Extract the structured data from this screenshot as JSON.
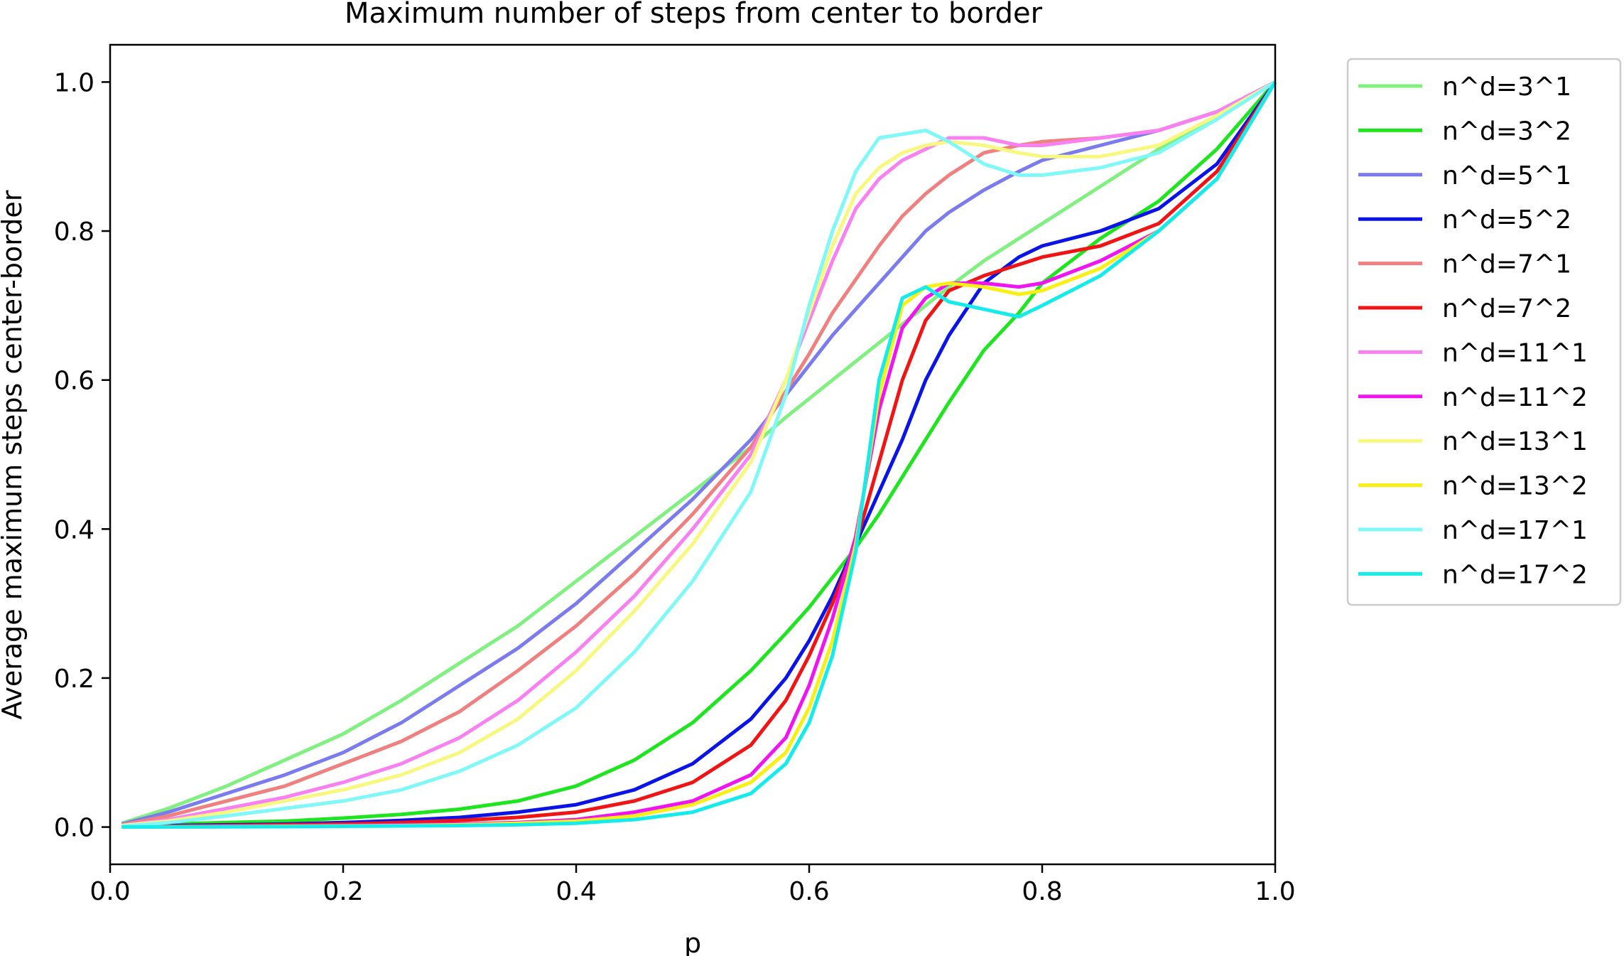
{
  "chart_data": {
    "type": "line",
    "title": "Maximum number of steps from center to border",
    "xlabel": "p",
    "ylabel": "Average maximum steps center-border",
    "xlim": [
      0.0,
      1.0
    ],
    "ylim": [
      -0.05,
      1.05
    ],
    "xticks": [
      0.0,
      0.2,
      0.4,
      0.6,
      0.8,
      1.0
    ],
    "xtick_labels": [
      "0.0",
      "0.2",
      "0.4",
      "0.6",
      "0.8",
      "1.0"
    ],
    "yticks": [
      0.0,
      0.2,
      0.4,
      0.6,
      0.8,
      1.0
    ],
    "ytick_labels": [
      "0.0",
      "0.2",
      "0.4",
      "0.6",
      "0.8",
      "1.0"
    ],
    "grid": false,
    "legend_position": "outside-right",
    "x": [
      0.01,
      0.05,
      0.1,
      0.15,
      0.2,
      0.25,
      0.3,
      0.35,
      0.4,
      0.45,
      0.5,
      0.55,
      0.58,
      0.6,
      0.62,
      0.64,
      0.66,
      0.68,
      0.7,
      0.72,
      0.75,
      0.78,
      0.8,
      0.85,
      0.9,
      0.95,
      1.0
    ],
    "series": [
      {
        "name": "n^d=3^1",
        "color": "#80f080",
        "values": [
          0.005,
          0.025,
          0.055,
          0.09,
          0.125,
          0.17,
          0.22,
          0.27,
          0.33,
          0.39,
          0.45,
          0.51,
          0.55,
          0.575,
          0.6,
          0.625,
          0.65,
          0.675,
          0.7,
          0.725,
          0.76,
          0.79,
          0.81,
          0.86,
          0.91,
          0.955,
          1.0
        ]
      },
      {
        "name": "n^d=3^2",
        "color": "#1ee61e",
        "values": [
          0.002,
          0.004,
          0.006,
          0.008,
          0.012,
          0.017,
          0.024,
          0.035,
          0.055,
          0.09,
          0.14,
          0.21,
          0.26,
          0.295,
          0.335,
          0.375,
          0.42,
          0.47,
          0.52,
          0.57,
          0.64,
          0.69,
          0.73,
          0.79,
          0.84,
          0.91,
          1.0
        ]
      },
      {
        "name": "n^d=5^1",
        "color": "#7b7bf0",
        "values": [
          0.004,
          0.02,
          0.045,
          0.07,
          0.1,
          0.14,
          0.19,
          0.24,
          0.3,
          0.37,
          0.44,
          0.52,
          0.58,
          0.62,
          0.66,
          0.695,
          0.73,
          0.765,
          0.8,
          0.825,
          0.855,
          0.88,
          0.895,
          0.915,
          0.935,
          0.96,
          1.0
        ]
      },
      {
        "name": "n^d=5^2",
        "color": "#0a14e6",
        "values": [
          0.001,
          0.002,
          0.003,
          0.004,
          0.006,
          0.009,
          0.013,
          0.02,
          0.03,
          0.05,
          0.085,
          0.145,
          0.2,
          0.25,
          0.31,
          0.38,
          0.45,
          0.52,
          0.6,
          0.66,
          0.73,
          0.765,
          0.78,
          0.8,
          0.83,
          0.89,
          1.0
        ]
      },
      {
        "name": "n^d=7^1",
        "color": "#f08080",
        "values": [
          0.003,
          0.015,
          0.035,
          0.055,
          0.085,
          0.115,
          0.155,
          0.21,
          0.27,
          0.34,
          0.42,
          0.51,
          0.585,
          0.635,
          0.69,
          0.735,
          0.78,
          0.82,
          0.85,
          0.875,
          0.905,
          0.915,
          0.92,
          0.925,
          0.935,
          0.96,
          1.0
        ]
      },
      {
        "name": "n^d=7^2",
        "color": "#f01414",
        "values": [
          0.0005,
          0.001,
          0.002,
          0.003,
          0.004,
          0.006,
          0.009,
          0.013,
          0.02,
          0.035,
          0.06,
          0.11,
          0.17,
          0.23,
          0.3,
          0.38,
          0.49,
          0.6,
          0.68,
          0.72,
          0.74,
          0.755,
          0.765,
          0.78,
          0.81,
          0.88,
          1.0
        ]
      },
      {
        "name": "n^d=11^1",
        "color": "#f880f0",
        "values": [
          0.002,
          0.01,
          0.025,
          0.04,
          0.06,
          0.085,
          0.12,
          0.17,
          0.235,
          0.31,
          0.4,
          0.5,
          0.6,
          0.68,
          0.76,
          0.83,
          0.87,
          0.895,
          0.91,
          0.925,
          0.925,
          0.915,
          0.915,
          0.925,
          0.935,
          0.96,
          1.0
        ]
      },
      {
        "name": "n^d=11^2",
        "color": "#f014f0",
        "values": [
          0.0002,
          0.0005,
          0.001,
          0.0015,
          0.002,
          0.003,
          0.004,
          0.006,
          0.01,
          0.02,
          0.035,
          0.07,
          0.12,
          0.19,
          0.28,
          0.39,
          0.56,
          0.67,
          0.71,
          0.73,
          0.73,
          0.725,
          0.73,
          0.76,
          0.8,
          0.87,
          1.0
        ]
      },
      {
        "name": "n^d=13^1",
        "color": "#f8f880",
        "values": [
          0.002,
          0.008,
          0.02,
          0.035,
          0.05,
          0.07,
          0.1,
          0.145,
          0.21,
          0.29,
          0.38,
          0.49,
          0.6,
          0.69,
          0.78,
          0.85,
          0.885,
          0.905,
          0.915,
          0.92,
          0.915,
          0.905,
          0.9,
          0.9,
          0.915,
          0.955,
          1.0
        ]
      },
      {
        "name": "n^d=13^2",
        "color": "#f8f014",
        "values": [
          0.0001,
          0.0003,
          0.0006,
          0.001,
          0.0015,
          0.002,
          0.003,
          0.005,
          0.008,
          0.015,
          0.03,
          0.06,
          0.1,
          0.16,
          0.25,
          0.38,
          0.58,
          0.7,
          0.725,
          0.73,
          0.725,
          0.715,
          0.72,
          0.75,
          0.8,
          0.87,
          1.0
        ]
      },
      {
        "name": "n^d=17^1",
        "color": "#80f8f8",
        "values": [
          0.001,
          0.006,
          0.015,
          0.025,
          0.035,
          0.05,
          0.075,
          0.11,
          0.16,
          0.235,
          0.33,
          0.45,
          0.58,
          0.7,
          0.8,
          0.88,
          0.925,
          0.93,
          0.935,
          0.92,
          0.89,
          0.875,
          0.875,
          0.885,
          0.905,
          0.95,
          1.0
        ]
      },
      {
        "name": "n^d=17^2",
        "color": "#14ecec",
        "values": [
          0.0001,
          0.0002,
          0.0004,
          0.0006,
          0.001,
          0.0015,
          0.002,
          0.003,
          0.005,
          0.01,
          0.02,
          0.045,
          0.085,
          0.14,
          0.23,
          0.37,
          0.6,
          0.71,
          0.725,
          0.705,
          0.695,
          0.685,
          0.7,
          0.74,
          0.8,
          0.87,
          1.0
        ]
      }
    ]
  }
}
